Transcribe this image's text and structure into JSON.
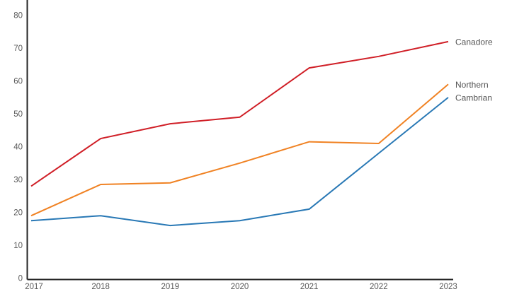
{
  "chart_data": {
    "type": "line",
    "title": "",
    "xlabel": "",
    "ylabel": "",
    "categories": [
      "2017",
      "2018",
      "2019",
      "2020",
      "2021",
      "2022",
      "2023"
    ],
    "series": [
      {
        "name": "Canadore",
        "color": "#d01f27",
        "values": [
          28,
          42.5,
          47,
          49,
          64,
          67.5,
          72
        ]
      },
      {
        "name": "Northern",
        "color": "#f08223",
        "values": [
          19,
          28.5,
          29,
          35,
          41.5,
          41,
          59
        ]
      },
      {
        "name": "Cambrian",
        "color": "#2878b5",
        "values": [
          17.5,
          19,
          16,
          17.5,
          21,
          38,
          55
        ]
      }
    ],
    "ylim": [
      0,
      80
    ],
    "yticks": [
      0,
      10,
      20,
      30,
      40,
      50,
      60,
      70,
      80
    ],
    "grid": false,
    "legend_position": "right-end-labels",
    "colors": {
      "axis": "#262626",
      "tick_label": "#595959",
      "series_label": "#555555",
      "background": "#ffffff"
    }
  }
}
